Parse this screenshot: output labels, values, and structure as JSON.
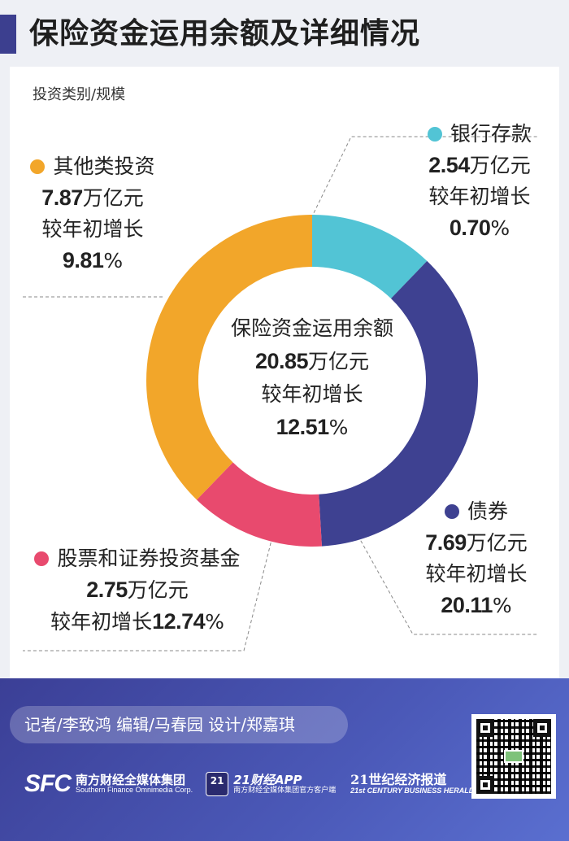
{
  "title": "保险资金运用余额及详细情况",
  "subtitle": "投资类别/规模",
  "center": {
    "label": "保险资金运用余额",
    "value": "20.85",
    "unit": "万亿元",
    "growth_label": "较年初增长",
    "growth_value": "12.51",
    "growth_unit": "%"
  },
  "chart_data": {
    "type": "pie",
    "donut": true,
    "total": 20.85,
    "unit": "万亿元",
    "slices": [
      {
        "name": "银行存款",
        "value": 2.54,
        "growth": 0.7,
        "color": "#52c4d5"
      },
      {
        "name": "债券",
        "value": 7.69,
        "growth": 20.11,
        "color": "#3e4191"
      },
      {
        "name": "股票和证券投资基金",
        "value": 2.75,
        "growth": 12.74,
        "color": "#e84a6e"
      },
      {
        "name": "其他类投资",
        "value": 7.87,
        "growth": 9.81,
        "color": "#f2a62a"
      }
    ]
  },
  "labels": {
    "bank": {
      "name": "银行存款",
      "value": "2.54",
      "unit": "万亿元",
      "growth_label": "较年初增长",
      "growth_value": "0.70",
      "growth_unit": "%"
    },
    "bond": {
      "name": "债券",
      "value": "7.69",
      "unit": "万亿元",
      "growth_label": "较年初增长",
      "growth_value": "20.11",
      "growth_unit": "%"
    },
    "stock": {
      "name": "股票和证券投资基金",
      "value": "2.75",
      "unit": "万亿元",
      "growth_label": "较年初增长",
      "growth_value": "12.74",
      "growth_unit": "%"
    },
    "other": {
      "name": "其他类投资",
      "value": "7.87",
      "unit": "万亿元",
      "growth_label": "较年初增长",
      "growth_value": "9.81",
      "growth_unit": "%"
    }
  },
  "footer": {
    "credits": "记者/李致鸿  编辑/马春园  设计/郑嘉琪",
    "sfc_logo": "SFC",
    "sfc_name": "南方财经全媒体集团",
    "sfc_english": "Southern Finance Omnimedia Corp.",
    "app_badge": "21",
    "app_name": "21财经APP",
    "app_sub": "南方财经全媒体集团官方客户端",
    "paper_name": "21世纪经济报道",
    "paper_english": "21st CENTURY BUSINESS HERALD",
    "qr_icon": "qr-code-icon"
  }
}
